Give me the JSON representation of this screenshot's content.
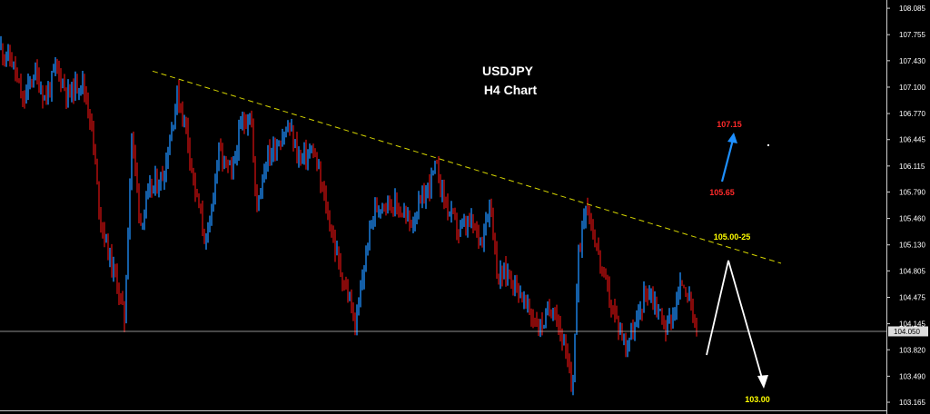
{
  "chart_data": {
    "type": "candlestick",
    "title": "USDJPY",
    "subtitle": "H4 Chart",
    "y_ticks": [
      "108.085",
      "107.755",
      "107.430",
      "107.100",
      "106.770",
      "106.445",
      "106.115",
      "105.790",
      "105.460",
      "105.130",
      "104.805",
      "104.475",
      "104.145",
      "103.820",
      "103.490",
      "103.165"
    ],
    "ylim": [
      103.12,
      108.15
    ],
    "current_price": "104.050",
    "bull_color": "#1e90ff",
    "bear_color": "#cc1010",
    "price_path": [
      [
        0,
        107.6
      ],
      [
        14,
        107.4
      ],
      [
        25,
        106.9
      ],
      [
        38,
        107.3
      ],
      [
        50,
        106.95
      ],
      [
        62,
        107.35
      ],
      [
        75,
        107.0
      ],
      [
        90,
        107.2
      ],
      [
        100,
        106.7
      ],
      [
        110,
        105.5
      ],
      [
        120,
        105.0
      ],
      [
        130,
        104.6
      ],
      [
        137,
        104.2
      ],
      [
        145,
        106.5
      ],
      [
        155,
        105.4
      ],
      [
        165,
        105.8
      ],
      [
        180,
        106.0
      ],
      [
        195,
        107.0
      ],
      [
        205,
        106.6
      ],
      [
        215,
        105.8
      ],
      [
        228,
        105.1
      ],
      [
        240,
        106.3
      ],
      [
        255,
        106.0
      ],
      [
        265,
        106.6
      ],
      [
        276,
        106.8
      ],
      [
        282,
        105.6
      ],
      [
        293,
        106.2
      ],
      [
        305,
        106.4
      ],
      [
        318,
        106.6
      ],
      [
        330,
        106.2
      ],
      [
        345,
        106.3
      ],
      [
        355,
        105.8
      ],
      [
        365,
        105.3
      ],
      [
        375,
        104.8
      ],
      [
        383,
        104.5
      ],
      [
        392,
        104.1
      ],
      [
        400,
        104.8
      ],
      [
        410,
        105.5
      ],
      [
        422,
        105.7
      ],
      [
        438,
        105.6
      ],
      [
        452,
        105.4
      ],
      [
        466,
        105.7
      ],
      [
        480,
        106.1
      ],
      [
        492,
        105.6
      ],
      [
        505,
        105.3
      ],
      [
        518,
        105.4
      ],
      [
        530,
        105.2
      ],
      [
        540,
        105.7
      ],
      [
        548,
        104.7
      ],
      [
        558,
        104.8
      ],
      [
        570,
        104.6
      ],
      [
        582,
        104.3
      ],
      [
        595,
        104.1
      ],
      [
        610,
        104.4
      ],
      [
        622,
        103.8
      ],
      [
        630,
        103.3
      ],
      [
        637,
        105.0
      ],
      [
        645,
        105.7
      ],
      [
        655,
        105.2
      ],
      [
        665,
        104.7
      ],
      [
        675,
        104.3
      ],
      [
        688,
        103.9
      ],
      [
        700,
        104.1
      ],
      [
        712,
        104.6
      ],
      [
        722,
        104.4
      ],
      [
        733,
        104.1
      ],
      [
        742,
        104.3
      ],
      [
        752,
        104.7
      ],
      [
        760,
        104.4
      ],
      [
        768,
        103.9
      ]
    ],
    "trendline": {
      "from": [
        168,
        107.3
      ],
      "to": [
        860,
        104.9
      ]
    },
    "projection": {
      "up_label": "107.15",
      "up_base_label": "105.65",
      "resistance_label": "105.00-25",
      "target_label": "103.00"
    }
  }
}
